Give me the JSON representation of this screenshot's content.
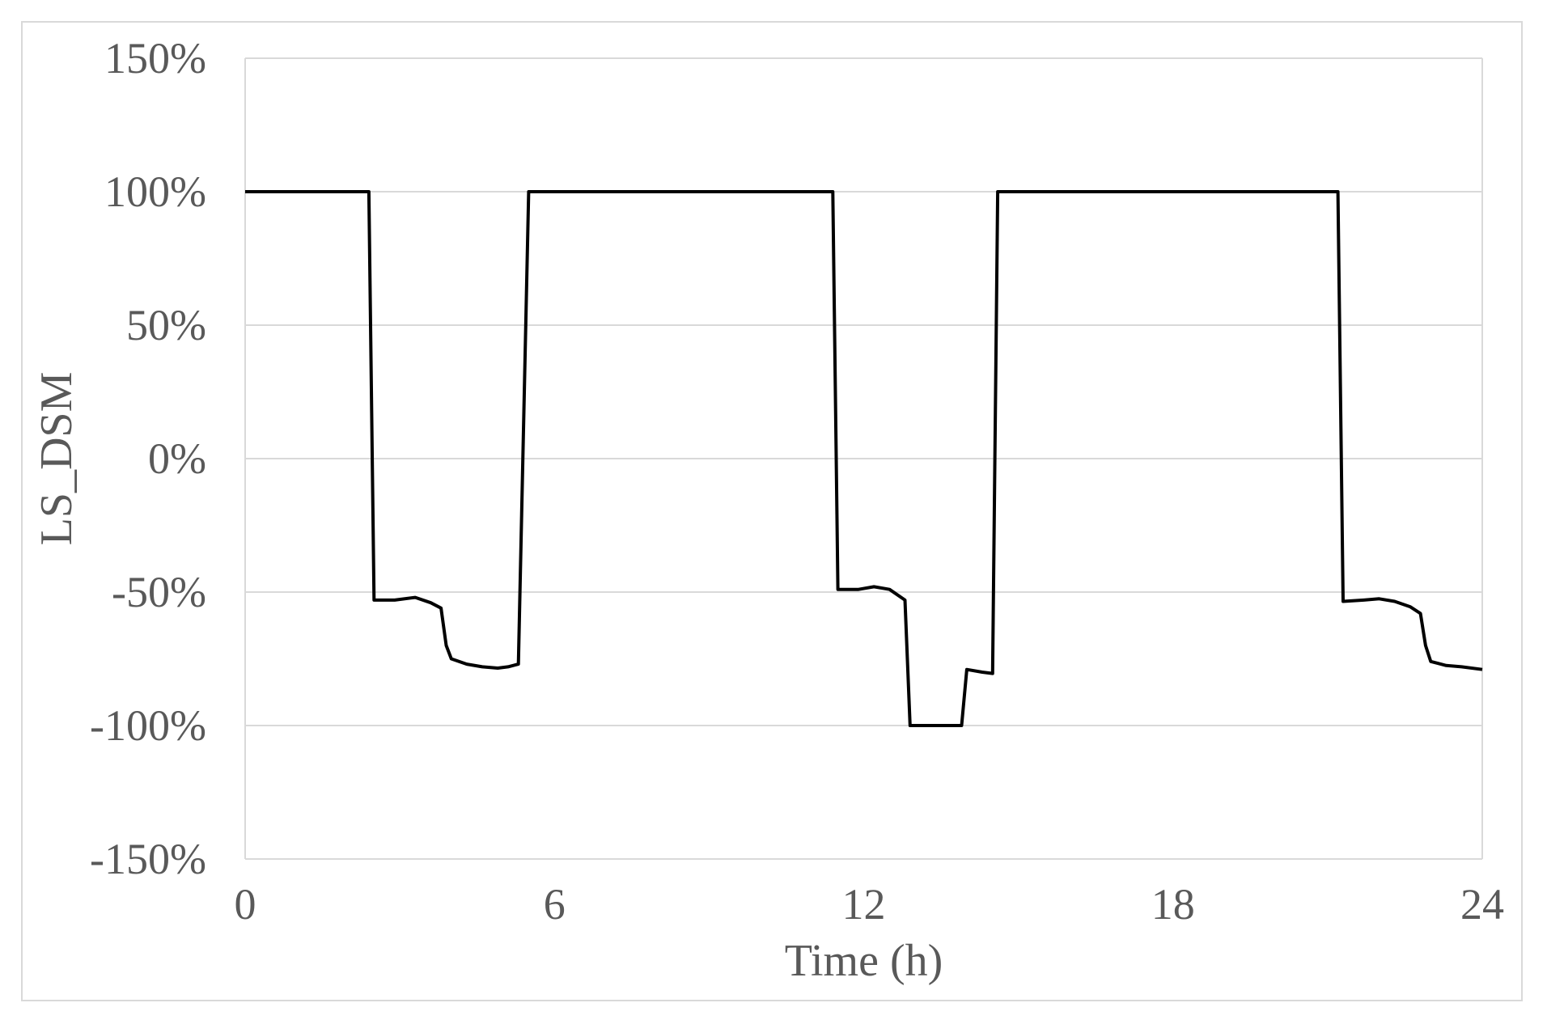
{
  "chart_data": {
    "type": "line",
    "title": "",
    "xlabel": "Time (h)",
    "ylabel": "LS_DSM",
    "xlim": [
      0,
      24
    ],
    "ylim": [
      -150,
      150
    ],
    "x_ticks": [
      0,
      6,
      12,
      18,
      24
    ],
    "y_ticks": [
      150,
      100,
      50,
      0,
      -50,
      -100,
      -150
    ],
    "y_tick_labels": [
      "150%",
      "100%",
      "50%",
      "0%",
      "-50%",
      "-100%",
      "-150%"
    ],
    "x_tick_labels": [
      "0",
      "6",
      "12",
      "18",
      "24"
    ],
    "grid": "horizontal",
    "legend": "none",
    "colors": {
      "line": "#000000",
      "grid": "#d9d9d9",
      "text": "#595959"
    },
    "series": [
      {
        "x": [
          0,
          2.4,
          2.5,
          2.9,
          3.3,
          3.6,
          3.8,
          3.9,
          4.0,
          4.3,
          4.6,
          4.9,
          5.1,
          5.3,
          5.5,
          11.4,
          11.5,
          11.9,
          12.2,
          12.5,
          12.8,
          12.9,
          13.0,
          13.9,
          14.0,
          14.3,
          14.5,
          14.6,
          21.2,
          21.3,
          21.7,
          22.0,
          22.3,
          22.6,
          22.8,
          22.9,
          23.0,
          23.3,
          23.6,
          24.0
        ],
        "y": [
          100,
          100,
          -53,
          -53,
          -52,
          -54,
          -56,
          -70,
          -75,
          -77,
          -78,
          -78.5,
          -78,
          -77,
          100,
          100,
          -49,
          -49,
          -48,
          -49,
          -53,
          -100,
          -100,
          -100,
          -79,
          -80,
          -80.5,
          100,
          100,
          -53.5,
          -53,
          -52.5,
          -53.5,
          -55.5,
          -58,
          -70,
          -76,
          -77.5,
          -78,
          -79
        ]
      }
    ]
  }
}
